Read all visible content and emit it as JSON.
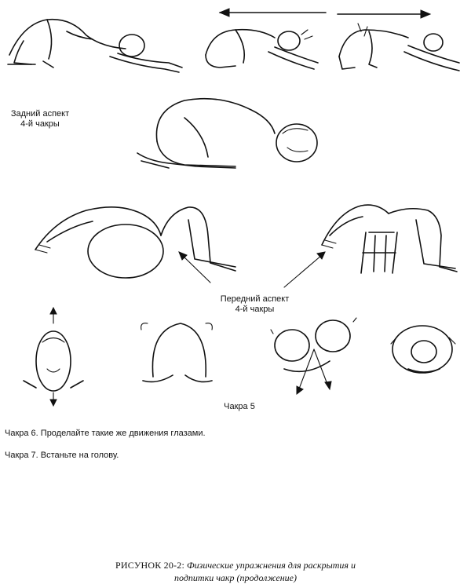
{
  "labels": {
    "back_aspect": "Задний аспект\n4-й чакры",
    "front_aspect": "Передний аспект\n4-й чакры",
    "chakra5": "Чакра 5"
  },
  "notes": {
    "chakra6": "Чакра 6. Проделайте такие же движения глазами.",
    "chakra7": "Чакра 7. Встаньте на голову."
  },
  "caption": {
    "figure_label": "РИСУНОК 20-2:",
    "text_line1": "Физические упражнения для раскрытия и",
    "text_line2": "подпитки чакр (продолжение)"
  }
}
